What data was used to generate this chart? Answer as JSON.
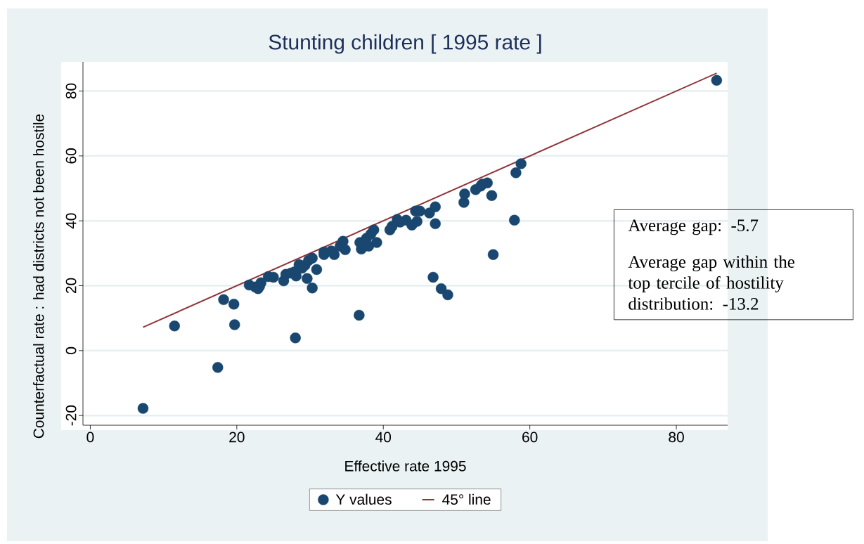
{
  "chart_data": {
    "type": "scatter",
    "title": "Stunting children [ 1995 rate ]",
    "xlabel": "Effective rate 1995",
    "ylabel": "Counterfactual rate : had districts not been hostile",
    "xlim": [
      -1,
      87
    ],
    "ylim": [
      -23,
      89
    ],
    "xticks": [
      0,
      20,
      40,
      60,
      80
    ],
    "yticks": [
      -20,
      0,
      20,
      40,
      60,
      80
    ],
    "grid": "y",
    "legend": "bottom",
    "annotations": [
      "Average gap: -5.7",
      "Average gap within the top tercile of hostility distribution: -13.2"
    ],
    "series": [
      {
        "name": "Y values",
        "marker": "circle",
        "color": "#1a476f",
        "x": [
          7.2,
          11.5,
          17.4,
          18.2,
          19.6,
          19.7,
          28.0,
          36.7,
          46.8,
          47.9,
          48.8,
          55.0,
          57.9,
          58.1,
          58.8,
          85.5,
          21.7,
          22.5,
          23.1,
          22.9,
          23.3,
          24.3,
          25.0,
          26.4,
          26.7,
          27.4,
          27.9,
          28.1,
          28.5,
          28.9,
          29.3,
          29.6,
          29.8,
          30.3,
          30.3,
          30.9,
          31.9,
          31.9,
          32.9,
          33.3,
          34.1,
          34.5,
          34.8,
          36.8,
          37.0,
          37.7,
          38.0,
          38.3,
          38.7,
          39.1,
          40.9,
          41.2,
          41.9,
          42.3,
          43.1,
          43.9,
          44.4,
          45.0,
          44.6,
          46.3,
          47.1,
          47.1,
          51.0,
          51.1,
          52.6,
          53.3,
          53.5,
          54.2,
          54.8
        ],
        "values": [
          -17.8,
          7.6,
          -5.2,
          15.7,
          14.3,
          8.0,
          3.9,
          10.9,
          22.6,
          19.1,
          17.2,
          29.6,
          40.2,
          54.8,
          57.6,
          83.3,
          20.2,
          19.6,
          19.8,
          19.1,
          20.9,
          22.8,
          22.6,
          21.5,
          23.5,
          23.9,
          24.3,
          23.0,
          26.5,
          25.4,
          26.3,
          22.2,
          27.8,
          28.5,
          19.3,
          25.0,
          30.4,
          29.6,
          30.7,
          29.6,
          32.2,
          33.7,
          31.1,
          33.3,
          31.3,
          34.6,
          32.2,
          35.9,
          37.2,
          33.3,
          37.2,
          38.3,
          40.4,
          39.6,
          40.2,
          38.7,
          43.0,
          43.0,
          39.8,
          42.4,
          44.3,
          39.1,
          45.7,
          48.3,
          49.6,
          50.7,
          51.3,
          51.7,
          47.8
        ]
      },
      {
        "name": "45° line",
        "type": "line",
        "marker": "none",
        "line_style": "solid",
        "color": "#90353b",
        "x": [
          7.2,
          85.5
        ],
        "values": [
          7.2,
          85.5
        ]
      }
    ]
  }
}
